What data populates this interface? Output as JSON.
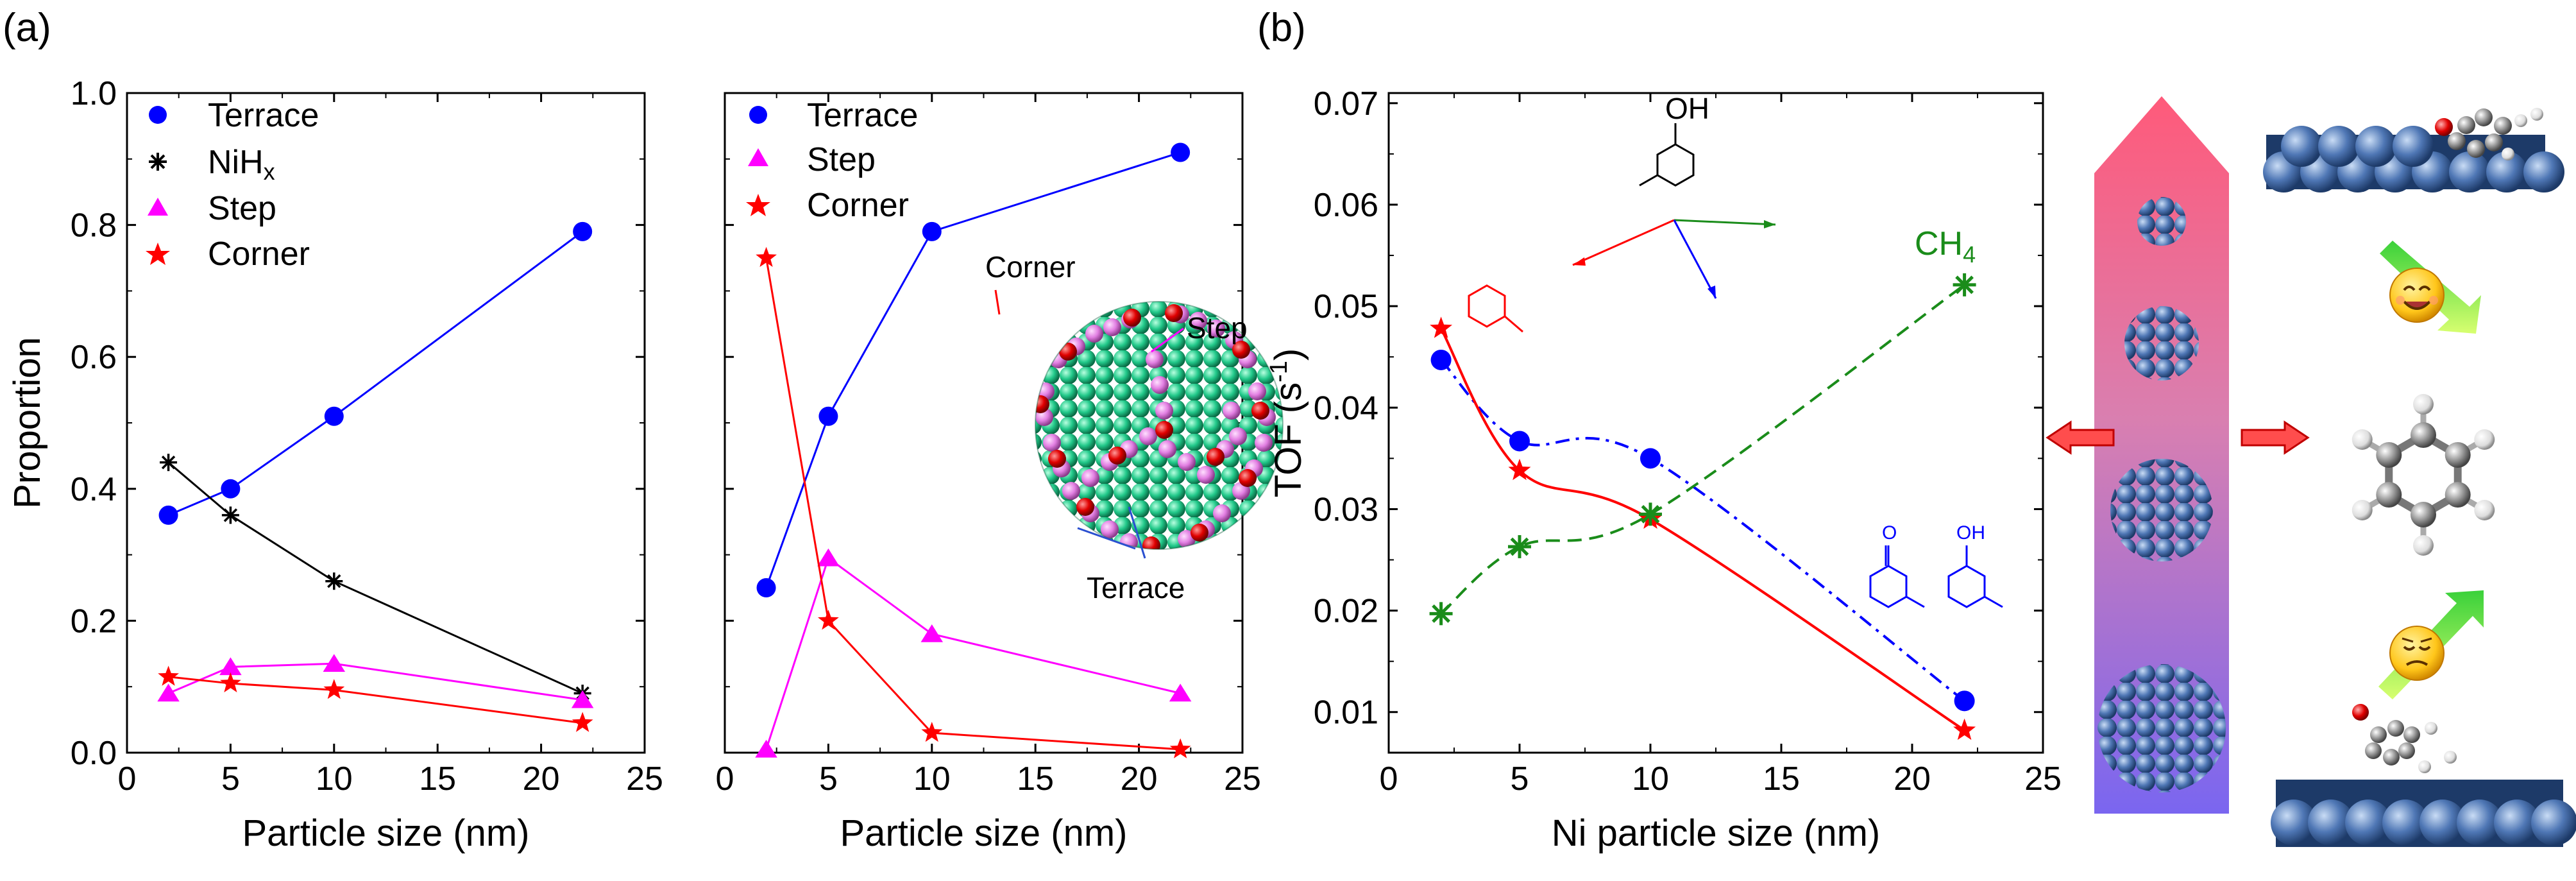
{
  "panel_labels": {
    "a": "(a)",
    "b": "(b)"
  },
  "annotations": {
    "corner": "Corner",
    "step": "Step",
    "terrace": "Terrace",
    "ch4": "CH",
    "ch4_sub": "4",
    "oh": "OH",
    "ketone_o": "O",
    "ol_oh": "OH"
  },
  "icons": {
    "nanoparticle": "ni-nanoparticle-illustration",
    "happy": "smiling-face-emoji",
    "sad": "pensive-face-emoji",
    "arrow": "red-double-arrow"
  },
  "colors": {
    "terrace": "#0000ff",
    "nihx": "#000000",
    "step": "#ff00ff",
    "corner": "#ff0000",
    "ch4": "#1a8c1a"
  },
  "chart_data": [
    {
      "type": "line",
      "xlabel": "Particle size (nm)",
      "ylabel": "Proportion",
      "xlim": [
        0,
        25
      ],
      "ylim": [
        0,
        1.0
      ],
      "xticks": [
        "0",
        "5",
        "10",
        "15",
        "20",
        "25"
      ],
      "yticks": [
        "0.0",
        "0.2",
        "0.4",
        "0.6",
        "0.8",
        "1.0"
      ],
      "legend_position": "top-left",
      "series": [
        {
          "name": "Terrace",
          "marker": "circle",
          "x": [
            2,
            5,
            10,
            22
          ],
          "y": [
            0.36,
            0.4,
            0.51,
            0.79
          ]
        },
        {
          "name": "NiHx",
          "marker": "asterisk",
          "x": [
            2,
            5,
            10,
            22
          ],
          "y": [
            0.44,
            0.36,
            0.26,
            0.09
          ]
        },
        {
          "name": "Step",
          "marker": "triangle",
          "x": [
            2,
            5,
            10,
            22
          ],
          "y": [
            0.09,
            0.13,
            0.135,
            0.08
          ]
        },
        {
          "name": "Corner",
          "marker": "star",
          "x": [
            2,
            5,
            10,
            22
          ],
          "y": [
            0.115,
            0.105,
            0.095,
            0.045
          ]
        }
      ]
    },
    {
      "type": "line",
      "xlabel": "Particle size (nm)",
      "ylabel": "",
      "xlim": [
        0,
        25
      ],
      "ylim": [
        0,
        1.0
      ],
      "xticks": [
        "0",
        "5",
        "10",
        "15",
        "20",
        "25"
      ],
      "legend_position": "top-left",
      "series": [
        {
          "name": "Terrace",
          "marker": "circle",
          "x": [
            2,
            5,
            10,
            22
          ],
          "y": [
            0.25,
            0.51,
            0.79,
            0.91
          ]
        },
        {
          "name": "Step",
          "marker": "triangle",
          "x": [
            2,
            5,
            10,
            22
          ],
          "y": [
            0.005,
            0.295,
            0.18,
            0.09
          ]
        },
        {
          "name": "Corner",
          "marker": "star",
          "x": [
            2,
            5,
            10,
            22
          ],
          "y": [
            0.75,
            0.2,
            0.03,
            0.005
          ]
        }
      ]
    },
    {
      "type": "line",
      "xlabel": "Ni particle size (nm)",
      "ylabel": "TOF (s",
      "ylabel_sup": "-1",
      "ylabel_end": ")",
      "xlim": [
        0,
        25
      ],
      "ylim": [
        0.006,
        0.071
      ],
      "xticks": [
        "0",
        "5",
        "10",
        "15",
        "20",
        "25"
      ],
      "yticks": [
        "0.01",
        "0.02",
        "0.03",
        "0.04",
        "0.05",
        "0.06",
        "0.07"
      ],
      "series": [
        {
          "marker": "circle",
          "color": "#0000ff",
          "x": [
            2,
            5,
            10,
            22
          ],
          "y": [
            0.0447,
            0.0367,
            0.035,
            0.0111
          ]
        },
        {
          "marker": "star",
          "color": "#ff0000",
          "x": [
            2,
            5,
            10,
            22
          ],
          "y": [
            0.0478,
            0.0338,
            0.029,
            0.0082
          ]
        },
        {
          "marker": "asterisk",
          "color": "#1a8c1a",
          "x": [
            2,
            5,
            10,
            22
          ],
          "y": [
            0.0197,
            0.0263,
            0.0295,
            0.0521
          ]
        }
      ]
    }
  ]
}
